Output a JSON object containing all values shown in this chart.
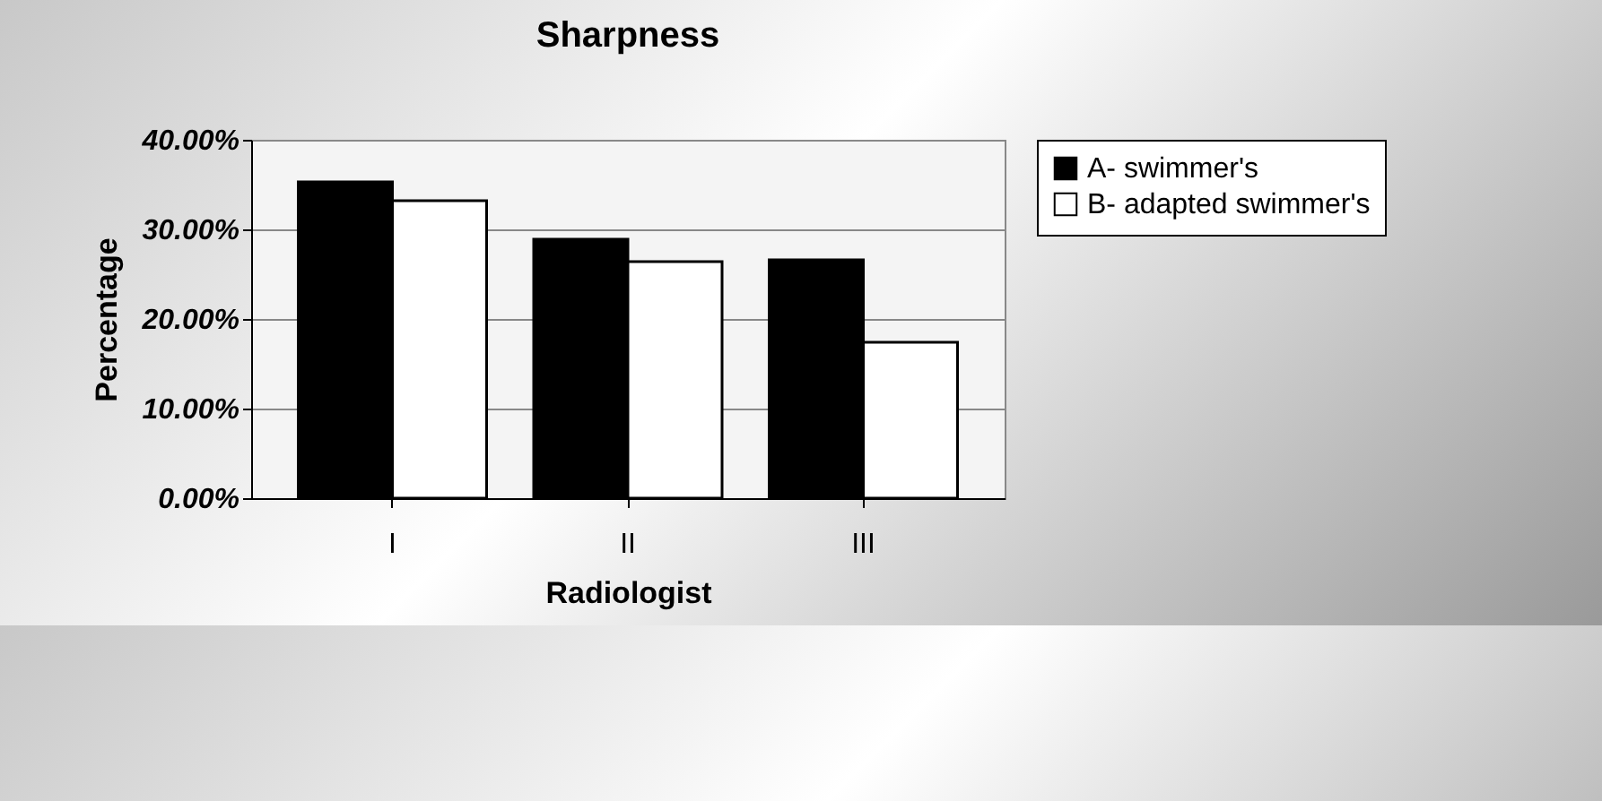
{
  "chart_data": {
    "type": "bar",
    "title": "Sharpness",
    "xlabel": "Radiologist",
    "ylabel": "Percentage",
    "categories": [
      "I",
      "II",
      "III"
    ],
    "series": [
      {
        "name": "A- swimmer's",
        "color": "#000000",
        "values": [
          35.3,
          28.9,
          26.6
        ]
      },
      {
        "name": "B- adapted swimmer's",
        "color": "#ffffff",
        "values": [
          33.2,
          26.4,
          17.4
        ]
      }
    ],
    "ylim": [
      0,
      40
    ],
    "yticks": [
      {
        "value": 0,
        "label": "0.00%"
      },
      {
        "value": 10,
        "label": "10.00%"
      },
      {
        "value": 20,
        "label": "20.00%"
      },
      {
        "value": 30,
        "label": "30.00%"
      },
      {
        "value": 40,
        "label": "40.00%"
      }
    ],
    "grid": "y",
    "legend": "right"
  }
}
